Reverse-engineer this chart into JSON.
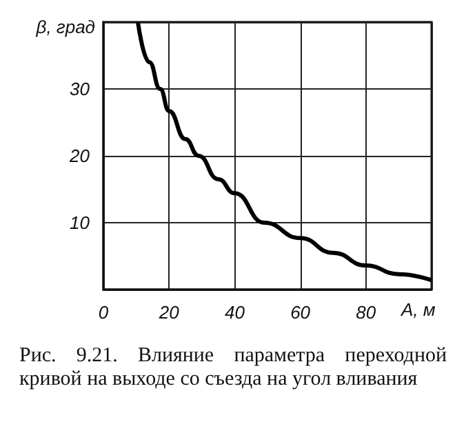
{
  "chart_data": {
    "type": "line",
    "xlabel": "A, м",
    "ylabel": "β, град",
    "x": [
      10.5,
      14,
      17.3,
      20,
      25,
      29,
      35,
      40,
      49,
      60,
      70,
      80,
      90,
      100
    ],
    "values": [
      40,
      34,
      30,
      26.7,
      22.5,
      20,
      16.5,
      14.4,
      10,
      7.7,
      5.5,
      3.6,
      2.3,
      1.4
    ],
    "color": "#000000",
    "xlim": [
      0,
      100
    ],
    "ylim": [
      0,
      40
    ],
    "xticks": [
      0,
      20,
      40,
      60,
      80,
      {
        "value": 100,
        "label": null
      }
    ],
    "yticks": [
      {
        "value": 0,
        "label": null
      },
      10,
      20,
      30,
      {
        "value": 40,
        "label": null
      }
    ],
    "grid": true,
    "annotations": [
      "Рис. 9.21. Влияние параметра переходной кривой на выходе со съезда на угол вливания"
    ]
  }
}
